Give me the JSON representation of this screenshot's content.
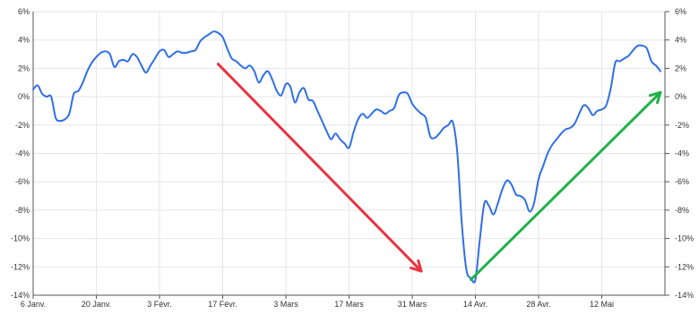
{
  "chart_data": {
    "type": "line",
    "title": "",
    "xlabel": "",
    "ylabel": "",
    "x_tick_labels": [
      "6 Janv.",
      "20 Janv.",
      "3 Févr.",
      "17 Févr.",
      "3 Mars",
      "17 Mars",
      "31 Mars",
      "14 Avr.",
      "28 Avr.",
      "12 Mai"
    ],
    "y_tick_labels": [
      "6%",
      "4%",
      "2%",
      "0%",
      "-2%",
      "-4%",
      "-6%",
      "-8%",
      "-10%",
      "-12%",
      "-14%"
    ],
    "y_ticks": [
      6,
      4,
      2,
      0,
      -2,
      -4,
      -6,
      -8,
      -10,
      -12,
      -14
    ],
    "ylim": [
      -14,
      6
    ],
    "xlim": [
      0,
      140
    ],
    "x_tick_days": [
      0,
      14,
      28,
      42,
      56,
      70,
      84,
      98,
      112,
      126
    ],
    "grid": true,
    "right_axis": true,
    "colors": {
      "line": "#2f6fe8",
      "arrow_down": "#e83340",
      "arrow_up": "#21b14a",
      "grid": "#e6e6e6",
      "axis": "#555555"
    },
    "series": [
      {
        "values": [
          [
            0,
            0.5
          ],
          [
            1,
            0.8
          ],
          [
            2,
            0.2
          ],
          [
            3,
            0.0
          ],
          [
            4,
            0.0
          ],
          [
            5,
            -1.5
          ],
          [
            6,
            -1.7
          ],
          [
            7,
            -1.6
          ],
          [
            8,
            -1.2
          ],
          [
            9,
            0.2
          ],
          [
            10,
            0.4
          ],
          [
            11,
            1.0
          ],
          [
            12,
            1.8
          ],
          [
            13,
            2.4
          ],
          [
            14,
            2.8
          ],
          [
            15,
            3.1
          ],
          [
            16,
            3.2
          ],
          [
            17,
            3.0
          ],
          [
            18,
            2.1
          ],
          [
            19,
            2.5
          ],
          [
            20,
            2.6
          ],
          [
            21,
            2.5
          ],
          [
            22,
            3.0
          ],
          [
            23,
            2.8
          ],
          [
            24,
            2.2
          ],
          [
            25,
            1.7
          ],
          [
            26,
            2.2
          ],
          [
            27,
            2.7
          ],
          [
            28,
            3.2
          ],
          [
            29,
            3.3
          ],
          [
            30,
            2.8
          ],
          [
            31,
            3.0
          ],
          [
            32,
            3.2
          ],
          [
            33,
            3.1
          ],
          [
            34,
            3.1
          ],
          [
            35,
            3.2
          ],
          [
            36,
            3.3
          ],
          [
            37,
            3.9
          ],
          [
            38,
            4.2
          ],
          [
            39,
            4.4
          ],
          [
            40,
            4.6
          ],
          [
            41,
            4.5
          ],
          [
            42,
            4.2
          ],
          [
            43,
            3.4
          ],
          [
            44,
            2.7
          ],
          [
            45,
            2.5
          ],
          [
            46,
            2.2
          ],
          [
            47,
            2.0
          ],
          [
            48,
            2.2
          ],
          [
            49,
            1.8
          ],
          [
            50,
            1.0
          ],
          [
            51,
            1.5
          ],
          [
            52,
            1.8
          ],
          [
            53,
            1.2
          ],
          [
            54,
            0.4
          ],
          [
            55,
            0.1
          ],
          [
            56,
            0.9
          ],
          [
            57,
            0.7
          ],
          [
            58,
            -0.4
          ],
          [
            59,
            0.3
          ],
          [
            60,
            0.6
          ],
          [
            61,
            -0.2
          ],
          [
            62,
            -0.3
          ],
          [
            63,
            -1.0
          ],
          [
            64,
            -1.7
          ],
          [
            65,
            -2.4
          ],
          [
            66,
            -3.0
          ],
          [
            67,
            -2.6
          ],
          [
            68,
            -3.0
          ],
          [
            69,
            -3.3
          ],
          [
            70,
            -3.6
          ],
          [
            71,
            -2.5
          ],
          [
            72,
            -1.6
          ],
          [
            73,
            -1.2
          ],
          [
            74,
            -1.5
          ],
          [
            75,
            -1.2
          ],
          [
            76,
            -0.9
          ],
          [
            77,
            -1.0
          ],
          [
            78,
            -1.2
          ],
          [
            79,
            -1.0
          ],
          [
            80,
            -0.8
          ],
          [
            81,
            0.1
          ],
          [
            82,
            0.3
          ],
          [
            83,
            0.2
          ],
          [
            84,
            -0.5
          ],
          [
            85,
            -0.9
          ],
          [
            86,
            -1.2
          ],
          [
            87,
            -1.5
          ],
          [
            88,
            -2.8
          ],
          [
            89,
            -2.9
          ],
          [
            90,
            -2.6
          ],
          [
            91,
            -2.2
          ],
          [
            92,
            -2.0
          ],
          [
            93,
            -1.8
          ],
          [
            94,
            -4.0
          ],
          [
            95,
            -9.0
          ],
          [
            96,
            -12.2
          ],
          [
            97,
            -12.8
          ],
          [
            98,
            -12.9
          ],
          [
            99,
            -10.0
          ],
          [
            100,
            -7.5
          ],
          [
            101,
            -7.7
          ],
          [
            102,
            -8.3
          ],
          [
            103,
            -7.5
          ],
          [
            104,
            -6.5
          ],
          [
            105,
            -5.9
          ],
          [
            106,
            -6.2
          ],
          [
            107,
            -6.9
          ],
          [
            108,
            -7.0
          ],
          [
            109,
            -7.3
          ],
          [
            110,
            -8.1
          ],
          [
            111,
            -7.5
          ],
          [
            112,
            -5.8
          ],
          [
            113,
            -4.9
          ],
          [
            114,
            -4.0
          ],
          [
            115,
            -3.4
          ],
          [
            116,
            -3.0
          ],
          [
            117,
            -2.6
          ],
          [
            118,
            -2.3
          ],
          [
            119,
            -2.2
          ],
          [
            120,
            -1.9
          ],
          [
            121,
            -1.2
          ],
          [
            122,
            -0.6
          ],
          [
            123,
            -0.8
          ],
          [
            124,
            -1.3
          ],
          [
            125,
            -1.0
          ],
          [
            126,
            -0.9
          ],
          [
            127,
            -0.6
          ],
          [
            128,
            0.6
          ],
          [
            129,
            2.4
          ],
          [
            130,
            2.5
          ],
          [
            131,
            2.7
          ],
          [
            132,
            2.9
          ],
          [
            133,
            3.3
          ],
          [
            134,
            3.6
          ],
          [
            135,
            3.6
          ],
          [
            136,
            3.4
          ],
          [
            137,
            2.5
          ],
          [
            138,
            2.2
          ],
          [
            139,
            1.8
          ]
        ]
      }
    ],
    "annotations": [
      {
        "type": "arrow",
        "color": "red",
        "from": [
          41,
          2.3
        ],
        "to": [
          86,
          -12.3
        ]
      },
      {
        "type": "arrow",
        "color": "green",
        "from": [
          97,
          -12.9
        ],
        "to": [
          139,
          0.3
        ]
      }
    ]
  }
}
